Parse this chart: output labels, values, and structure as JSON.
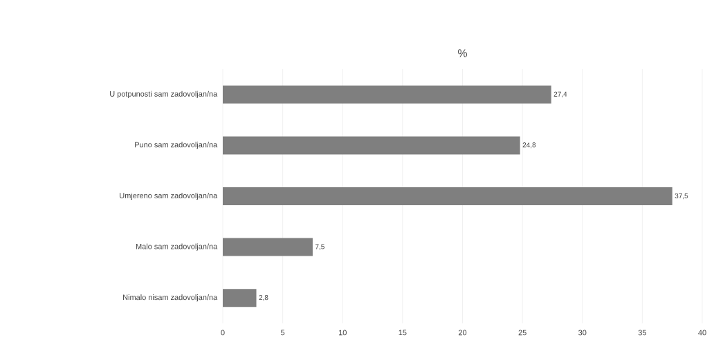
{
  "chart_data": {
    "type": "bar",
    "orientation": "horizontal",
    "title": "%",
    "categories": [
      "U potpunosti sam zadovoljan/na",
      "Puno sam zadovoljan/na",
      "Umjereno sam zadovoljan/na",
      "Malo sam zadovoljan/na",
      "Nimalo nisam zadovoljan/na"
    ],
    "values": [
      27.4,
      24.8,
      37.5,
      7.5,
      2.8
    ],
    "value_labels": [
      "27,4",
      "24,8",
      "37,5",
      "7,5",
      "2,8"
    ],
    "color": "#7f7f7f",
    "xlim": [
      0,
      40
    ],
    "xticks": [
      0,
      5,
      10,
      15,
      20,
      25,
      30,
      35,
      40
    ],
    "grid": "x"
  }
}
